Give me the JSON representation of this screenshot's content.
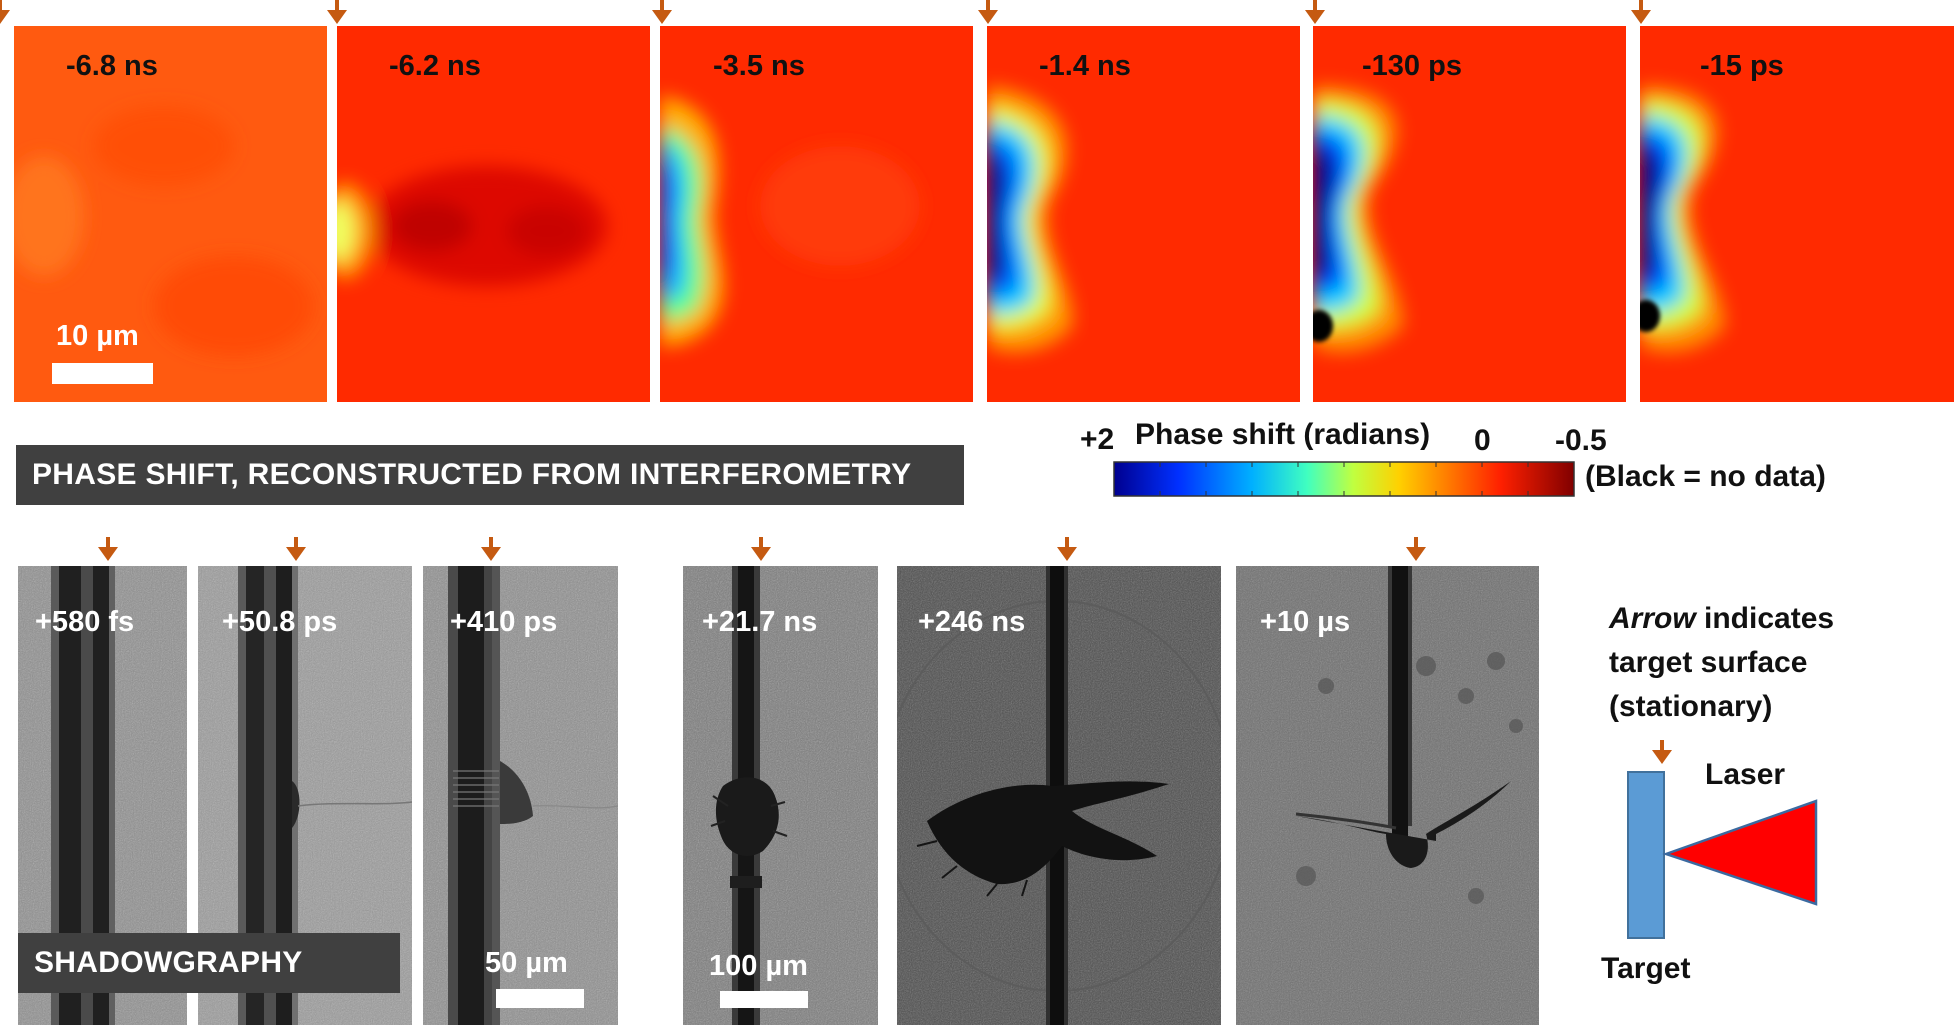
{
  "interferometry": {
    "frames": [
      {
        "time": "-6.8 ns"
      },
      {
        "time": "-6.2 ns"
      },
      {
        "time": "-3.5 ns"
      },
      {
        "time": "-1.4 ns"
      },
      {
        "time": "-130 ps"
      },
      {
        "time": "-15 ps"
      }
    ],
    "scale_label": "10 µm",
    "banner": "PHASE SHIFT, RECONSTRUCTED FROM INTERFEROMETRY"
  },
  "colorbar": {
    "title": "Phase shift (radians)",
    "max_label": "+2",
    "mid_label": "0",
    "min_label": "-0.5",
    "note": "(Black = no data)",
    "colors": [
      "#00008f",
      "#0050ff",
      "#00c8ff",
      "#7dff7d",
      "#ffe000",
      "#ff7000",
      "#ff2000",
      "#8a0000"
    ]
  },
  "shadowgraphy": {
    "frames": [
      {
        "time": "+580 fs"
      },
      {
        "time": "+50.8 ps"
      },
      {
        "time": "+410 ps"
      },
      {
        "time": "+21.7 ns"
      },
      {
        "time": "+246 ns"
      },
      {
        "time": "+10 µs"
      }
    ],
    "banner": "SHADOWGRAPHY",
    "scale_label_1": "50 µm",
    "scale_label_2": "100 µm"
  },
  "legend": {
    "arrow_word": "Arrow",
    "line1_rest": " indicates",
    "line2": "target surface",
    "line3": "(stationary)",
    "laser_label": "Laser",
    "target_label": "Target",
    "target_color": "#5b9bd5",
    "laser_color": "#ff0000"
  },
  "arrow_color": "#c55a11"
}
